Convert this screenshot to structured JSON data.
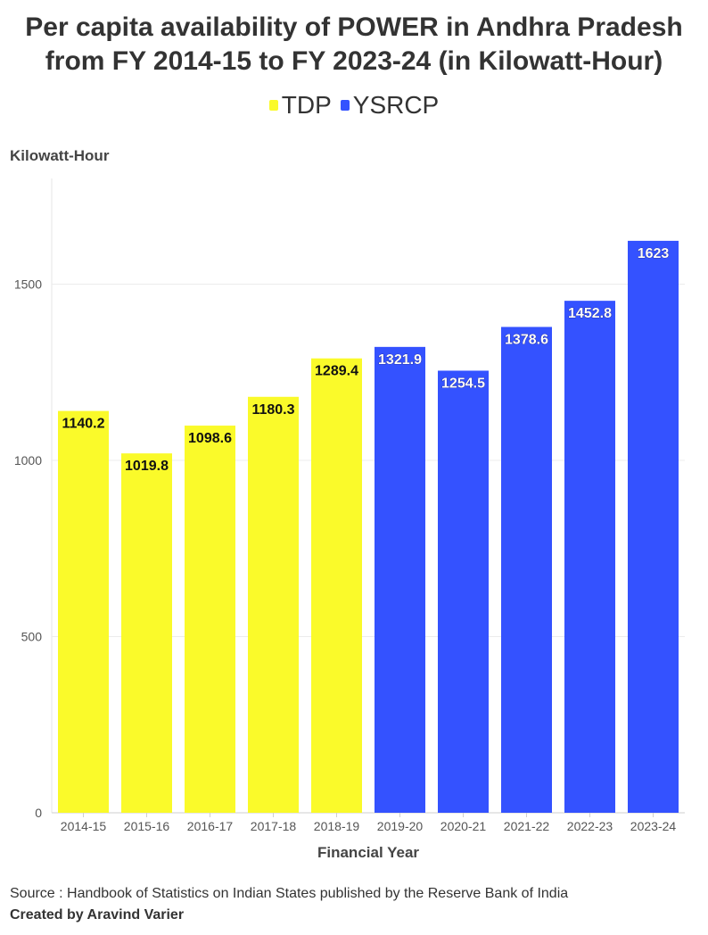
{
  "title_line1": "Per capita availability of POWER in Andhra Pradesh",
  "title_line2": "from FY 2014-15 to FY 2023-24 (in Kilowatt-Hour)",
  "legend": [
    {
      "label": "TDP",
      "color": "#fafa2a"
    },
    {
      "label": "YSRCP",
      "color": "#3452ff"
    }
  ],
  "source": "Source : Handbook of Statistics on Indian States published by the Reserve Bank of India",
  "credit": "Created by Aravind Varier",
  "chart_data": {
    "type": "bar",
    "title": "Per capita availability of POWER in Andhra Pradesh from FY 2014-15 to FY 2023-24 (in Kilowatt-Hour)",
    "xlabel": "Financial Year",
    "ylabel": "Kilowatt-Hour",
    "ylim": [
      0,
      1800
    ],
    "yticks": [
      0,
      500,
      1000,
      1500
    ],
    "grid": true,
    "legend_position": "top-center",
    "categories": [
      "2014-15",
      "2015-16",
      "2016-17",
      "2017-18",
      "2018-19",
      "2019-20",
      "2020-21",
      "2021-22",
      "2022-23",
      "2023-24"
    ],
    "values": [
      1140.2,
      1019.8,
      1098.6,
      1180.3,
      1289.4,
      1321.9,
      1254.5,
      1378.6,
      1452.8,
      1623
    ],
    "labels": [
      "1140.2",
      "1019.8",
      "1098.6",
      "1180.3",
      "1289.4",
      "1321.9",
      "1254.5",
      "1378.6",
      "1452.8",
      "1623"
    ],
    "party": [
      "TDP",
      "TDP",
      "TDP",
      "TDP",
      "TDP",
      "YSRCP",
      "YSRCP",
      "YSRCP",
      "YSRCP",
      "YSRCP"
    ]
  }
}
